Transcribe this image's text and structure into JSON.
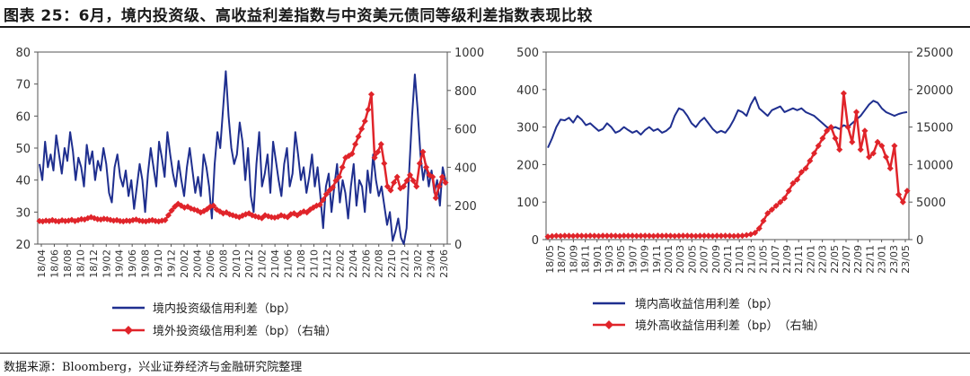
{
  "title": "图表 25：6月，境内投资级、高收益利差指数与中资美元债同等级利差指数表现比较",
  "source": "数据来源：Bloomberg，兴业证券经济与金融研究院整理",
  "colors": {
    "blue": "#1f2f8f",
    "red": "#e0242a"
  },
  "chart_data": [
    {
      "type": "line",
      "ylim": [
        20,
        80
      ],
      "y_ticks": [
        "20",
        "30",
        "40",
        "50",
        "60",
        "70",
        "80"
      ],
      "y2lim": [
        0,
        1000
      ],
      "y2_ticks": [
        "0",
        "200",
        "400",
        "600",
        "800",
        "1000"
      ],
      "x_ticks": [
        "18/04",
        "18/06",
        "18/08",
        "18/10",
        "18/12",
        "19/02",
        "19/04",
        "19/06",
        "19/08",
        "19/10",
        "19/12",
        "20/02",
        "20/04",
        "20/06",
        "20/08",
        "20/10",
        "20/12",
        "21/02",
        "21/04",
        "21/06",
        "21/08",
        "21/10",
        "21/12",
        "22/02",
        "22/04",
        "22/06",
        "22/08",
        "22/10",
        "22/12",
        "23/02",
        "23/04",
        "23/06"
      ],
      "series": [
        {
          "name": "境内投资级信用利差（bp）",
          "axis": "left",
          "values": [
            45,
            40,
            52,
            44,
            48,
            43,
            54,
            48,
            42,
            50,
            46,
            55,
            49,
            40,
            47,
            44,
            38,
            51,
            45,
            49,
            40,
            46,
            43,
            50,
            45,
            36,
            33,
            44,
            48,
            41,
            38,
            43,
            35,
            40,
            31,
            38,
            45,
            40,
            30,
            42,
            50,
            44,
            38,
            52,
            47,
            41,
            55,
            48,
            42,
            38,
            46,
            40,
            35,
            44,
            50,
            43,
            36,
            41,
            35,
            48,
            44,
            38,
            28,
            45,
            55,
            50,
            62,
            74,
            60,
            50,
            45,
            48,
            58,
            52,
            40,
            50,
            35,
            30,
            45,
            55,
            38,
            42,
            48,
            36,
            52,
            46,
            40,
            35,
            45,
            50,
            38,
            42,
            55,
            48,
            40,
            44,
            36,
            41,
            48,
            38,
            44,
            35,
            25,
            38,
            42,
            30,
            38,
            45,
            33,
            40,
            36,
            28,
            38,
            45,
            32,
            40,
            38,
            30,
            43,
            36,
            48,
            40,
            35,
            38,
            32,
            26,
            30,
            21,
            24,
            28,
            22,
            20,
            25,
            44,
            60,
            73,
            62,
            48,
            40,
            45,
            38,
            43,
            36,
            40,
            32,
            44,
            40
          ]
        },
        {
          "name": "境外投资级信用利差（bp）（右轴）",
          "axis": "right",
          "values": [
            120,
            118,
            122,
            120,
            125,
            120,
            118,
            124,
            120,
            122,
            126,
            120,
            125,
            130,
            128,
            135,
            140,
            135,
            130,
            128,
            132,
            130,
            126,
            122,
            125,
            120,
            118,
            122,
            120,
            125,
            128,
            122,
            120,
            118,
            122,
            125,
            120,
            118,
            122,
            125,
            150,
            175,
            195,
            210,
            200,
            190,
            195,
            185,
            180,
            175,
            165,
            172,
            182,
            195,
            200,
            180,
            170,
            160,
            165,
            155,
            150,
            145,
            140,
            148,
            155,
            160,
            150,
            145,
            140,
            135,
            150,
            145,
            140,
            138,
            142,
            150,
            145,
            140,
            155,
            160,
            150,
            162,
            170,
            165,
            180,
            190,
            200,
            205,
            230,
            260,
            280,
            295,
            330,
            350,
            400,
            450,
            460,
            470,
            520,
            560,
            600,
            640,
            700,
            780,
            450,
            480,
            520,
            420,
            300,
            280,
            320,
            350,
            290,
            300,
            330,
            360,
            330,
            300,
            420,
            480,
            400,
            360,
            350,
            240,
            300,
            350,
            320
          ]
        }
      ],
      "legend": "bottom"
    },
    {
      "type": "line",
      "ylim": [
        0,
        500
      ],
      "y_ticks": [
        "0",
        "100",
        "200",
        "300",
        "400",
        "500"
      ],
      "y2lim": [
        0,
        25000
      ],
      "y2_ticks": [
        "0",
        "5000",
        "10000",
        "15000",
        "20000",
        "25000"
      ],
      "x_ticks": [
        "18/05",
        "18/07",
        "18/09",
        "18/11",
        "19/01",
        "19/03",
        "19/05",
        "19/07",
        "19/09",
        "19/11",
        "20/01",
        "20/03",
        "20/05",
        "20/07",
        "20/09",
        "20/11",
        "21/01",
        "21/03",
        "21/05",
        "21/07",
        "21/09",
        "21/11",
        "22/01",
        "22/03",
        "22/05",
        "22/07",
        "22/09",
        "22/11",
        "23/01",
        "23/03",
        "23/05"
      ],
      "series": [
        {
          "name": "境内高收益信用利差（bp）",
          "axis": "left",
          "values": [
            245,
            270,
            300,
            320,
            318,
            325,
            312,
            330,
            320,
            305,
            310,
            300,
            290,
            295,
            310,
            300,
            285,
            290,
            300,
            292,
            285,
            290,
            280,
            292,
            300,
            290,
            295,
            285,
            290,
            300,
            330,
            350,
            345,
            330,
            310,
            300,
            315,
            325,
            310,
            295,
            285,
            290,
            285,
            300,
            320,
            345,
            340,
            330,
            360,
            380,
            350,
            340,
            330,
            345,
            350,
            355,
            340,
            345,
            350,
            345,
            350,
            340,
            335,
            330,
            320,
            310,
            300,
            295,
            300,
            295,
            305,
            300,
            310,
            320,
            330,
            345,
            360,
            370,
            365,
            350,
            340,
            335,
            330,
            335,
            338,
            340
          ]
        },
        {
          "name": "境外高收益信用利差（bp）　（右轴）",
          "axis": "right",
          "values": [
            400,
            450,
            500,
            480,
            520,
            500,
            480,
            510,
            500,
            490,
            520,
            500,
            480,
            510,
            500,
            520,
            500,
            480,
            520,
            500,
            510,
            490,
            500,
            520,
            500,
            480,
            510,
            500,
            520,
            500,
            480,
            500,
            520,
            510,
            500,
            480,
            500,
            520,
            500,
            480,
            510,
            500,
            520,
            500,
            480,
            500,
            520,
            600,
            700,
            900,
            1500,
            2500,
            3500,
            4000,
            4500,
            5000,
            5500,
            6500,
            7500,
            8000,
            9000,
            9500,
            10500,
            11500,
            12500,
            13500,
            14500,
            15000,
            13500,
            12000,
            19500,
            15000,
            13000,
            17000,
            12000,
            14500,
            11000,
            11500,
            13000,
            12500,
            11000,
            9500,
            12500,
            6000,
            5000,
            6500
          ]
        }
      ],
      "legend": "bottom"
    }
  ],
  "ui": {
    "chart1_legend": [
      "境内投资级信用利差（bp）",
      "境外投资级信用利差（bp）（右轴）"
    ],
    "chart2_legend": [
      "境内高收益信用利差（bp）",
      "境外高收益信用利差（bp）　（右轴）"
    ]
  }
}
